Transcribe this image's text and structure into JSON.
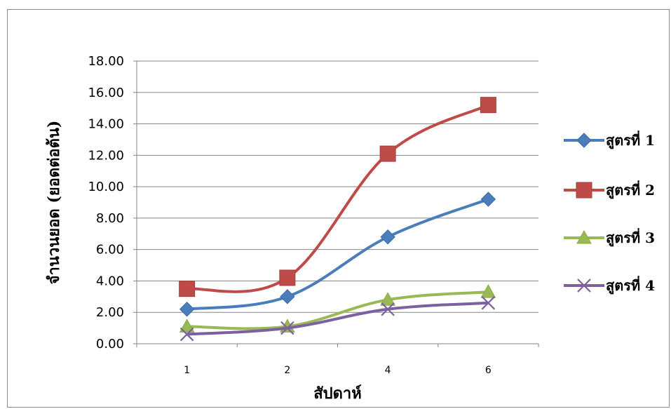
{
  "chart_data": {
    "type": "line",
    "title": "",
    "xlabel": "สัปดาห์",
    "ylabel": "จำนวนยอด (ยอดต่อต้น)",
    "categories": [
      "1",
      "2",
      "4",
      "6"
    ],
    "ylim": [
      0,
      18
    ],
    "yticks": [
      "0.00",
      "2.00",
      "4.00",
      "6.00",
      "8.00",
      "10.00",
      "12.00",
      "14.00",
      "16.00",
      "18.00"
    ],
    "grid": true,
    "legend_position": "right",
    "series": [
      {
        "name": "สูตรที่ 1",
        "values": [
          2.2,
          3.0,
          6.8,
          9.2
        ],
        "color": "#4a7ebb",
        "marker": "diamond"
      },
      {
        "name": "สูตรที่ 2",
        "values": [
          3.5,
          4.2,
          12.1,
          15.2
        ],
        "color": "#be4b48",
        "marker": "square"
      },
      {
        "name": "สูตรที่ 3",
        "values": [
          1.1,
          1.1,
          2.8,
          3.3
        ],
        "color": "#98b954",
        "marker": "triangle"
      },
      {
        "name": "สูตรที่ 4",
        "values": [
          0.6,
          1.0,
          2.2,
          2.6
        ],
        "color": "#7d60a0",
        "marker": "x"
      }
    ]
  }
}
